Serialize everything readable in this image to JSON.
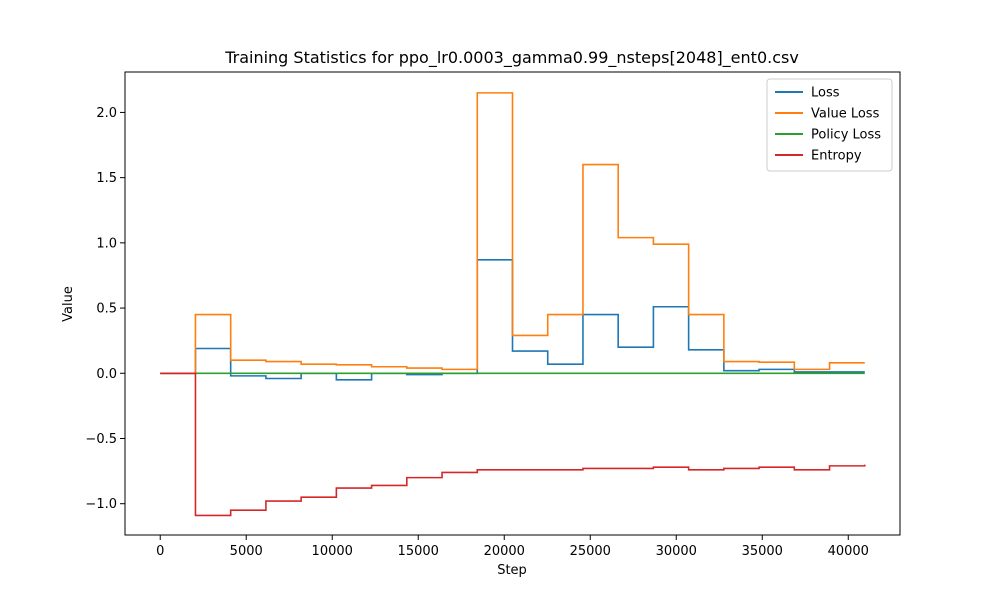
{
  "chart_data": {
    "type": "line",
    "title": "Training Statistics for ppo_lr0.0003_gamma0.99_nsteps[2048]_ent0.csv",
    "xlabel": "Step",
    "ylabel": "Value",
    "xlim": [
      -2048,
      43008
    ],
    "ylim": [
      -1.24,
      2.31
    ],
    "x_ticks": [
      0,
      5000,
      10000,
      15000,
      20000,
      25000,
      30000,
      35000,
      40000
    ],
    "x_tick_labels": [
      "0",
      "5000",
      "10000",
      "15000",
      "20000",
      "25000",
      "30000",
      "35000",
      "40000"
    ],
    "y_ticks": [
      -1.0,
      -0.5,
      0.0,
      0.5,
      1.0,
      1.5,
      2.0
    ],
    "y_tick_labels": [
      "−1.0",
      "−0.5",
      "0.0",
      "0.5",
      "1.0",
      "1.5",
      "2.0"
    ],
    "x": [
      0,
      2048,
      4096,
      6144,
      8192,
      10240,
      12288,
      14336,
      16384,
      18432,
      20480,
      22528,
      24576,
      26624,
      28672,
      30720,
      32768,
      34816,
      36864,
      38912,
      40960
    ],
    "grid": false,
    "legend_position": "top-right",
    "series": [
      {
        "name": "Loss",
        "color": "#1f77b4",
        "values": [
          0.0,
          0.19,
          -0.02,
          -0.04,
          -0.0,
          -0.05,
          -0.0,
          -0.01,
          0.0,
          0.87,
          0.17,
          0.07,
          0.45,
          0.2,
          0.51,
          0.18,
          0.02,
          0.03,
          0.01,
          0.01,
          0.01
        ]
      },
      {
        "name": "Value Loss",
        "color": "#ff7f0e",
        "values": [
          0.0,
          0.45,
          0.1,
          0.09,
          0.07,
          0.065,
          0.05,
          0.04,
          0.03,
          2.15,
          0.29,
          0.45,
          1.6,
          1.04,
          0.99,
          0.45,
          0.09,
          0.085,
          0.03,
          0.08,
          0.08
        ]
      },
      {
        "name": "Policy Loss",
        "color": "#2ca02c",
        "values": [
          0.0,
          0.0,
          0.0,
          0.0,
          0.0,
          0.0,
          0.0,
          0.0,
          0.0,
          0.0,
          0.0,
          0.0,
          0.0,
          0.0,
          0.0,
          0.0,
          0.0,
          0.0,
          0.0,
          0.0,
          0.0
        ]
      },
      {
        "name": "Entropy",
        "color": "#d62728",
        "values": [
          0.0,
          -1.09,
          -1.05,
          -0.98,
          -0.95,
          -0.88,
          -0.86,
          -0.8,
          -0.76,
          -0.74,
          -0.74,
          -0.74,
          -0.73,
          -0.73,
          -0.72,
          -0.74,
          -0.73,
          -0.72,
          -0.74,
          -0.71,
          -0.7
        ]
      }
    ]
  }
}
